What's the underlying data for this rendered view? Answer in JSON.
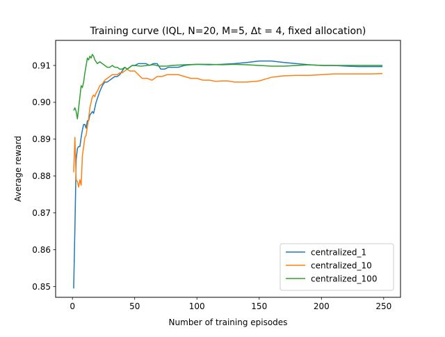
{
  "chart_data": {
    "type": "line",
    "title": "Training curve (IQL, N=20, M=5, Δt = 4, fixed allocation)",
    "xlabel": "Number of training episodes",
    "ylabel": "Average reward",
    "xlim": [
      -13.5,
      263.5
    ],
    "ylim": [
      0.8471,
      0.9168
    ],
    "xticks": [
      0,
      50,
      100,
      150,
      200,
      250
    ],
    "yticks": [
      0.85,
      0.86,
      0.87,
      0.88,
      0.89,
      0.9,
      0.91
    ],
    "ytick_labels": [
      "0.85",
      "0.86",
      "0.87",
      "0.88",
      "0.89",
      "0.90",
      "0.91"
    ],
    "grid": false,
    "legend_position": "lower right",
    "series": [
      {
        "name": "centralized_1",
        "color": "#1f77b4",
        "x": [
          1,
          2,
          3,
          4,
          5,
          6,
          7,
          8,
          9,
          10,
          11,
          12,
          13,
          14,
          15,
          16,
          17,
          18,
          19,
          20,
          22,
          24,
          26,
          28,
          30,
          32,
          34,
          36,
          38,
          40,
          42,
          44,
          46,
          48,
          50,
          53,
          56,
          59,
          62,
          65,
          68,
          71,
          74,
          77,
          80,
          85,
          90,
          95,
          100,
          110,
          120,
          130,
          140,
          150,
          155,
          160,
          165,
          170,
          180,
          190,
          200,
          210,
          220,
          230,
          240,
          249
        ],
        "y": [
          0.8495,
          0.866,
          0.8845,
          0.8875,
          0.888,
          0.888,
          0.8905,
          0.8925,
          0.894,
          0.894,
          0.893,
          0.895,
          0.895,
          0.8965,
          0.897,
          0.8975,
          0.897,
          0.8985,
          0.9,
          0.901,
          0.903,
          0.9045,
          0.9055,
          0.9055,
          0.906,
          0.9065,
          0.907,
          0.907,
          0.9075,
          0.9085,
          0.9095,
          0.909,
          0.9095,
          0.91,
          0.91,
          0.9105,
          0.9105,
          0.9105,
          0.91,
          0.9105,
          0.9105,
          0.909,
          0.909,
          0.9095,
          0.9095,
          0.9095,
          0.91,
          0.9102,
          0.9103,
          0.9102,
          0.9103,
          0.9105,
          0.9108,
          0.9112,
          0.9112,
          0.9112,
          0.911,
          0.9108,
          0.9105,
          0.9102,
          0.91,
          0.91,
          0.9098,
          0.9097,
          0.9097,
          0.9097
        ]
      },
      {
        "name": "centralized_10",
        "color": "#ff7f0e",
        "x": [
          1,
          2,
          3,
          4,
          5,
          6,
          7,
          8,
          9,
          10,
          11,
          12,
          13,
          14,
          15,
          16,
          17,
          18,
          19,
          20,
          22,
          24,
          26,
          28,
          30,
          32,
          34,
          36,
          38,
          40,
          42,
          44,
          46,
          48,
          50,
          53,
          56,
          60,
          64,
          68,
          72,
          76,
          80,
          85,
          90,
          95,
          100,
          105,
          110,
          115,
          120,
          125,
          130,
          140,
          150,
          155,
          160,
          165,
          170,
          180,
          190,
          200,
          210,
          220,
          230,
          240,
          249
        ],
        "y": [
          0.881,
          0.8905,
          0.879,
          0.8785,
          0.877,
          0.879,
          0.8775,
          0.8855,
          0.888,
          0.8905,
          0.891,
          0.8935,
          0.8955,
          0.8985,
          0.9,
          0.9015,
          0.902,
          0.9015,
          0.9025,
          0.903,
          0.9045,
          0.905,
          0.906,
          0.9065,
          0.907,
          0.9075,
          0.9075,
          0.9075,
          0.908,
          0.908,
          0.9085,
          0.909,
          0.9085,
          0.9085,
          0.9085,
          0.9075,
          0.9065,
          0.9065,
          0.906,
          0.907,
          0.907,
          0.9075,
          0.9075,
          0.9075,
          0.907,
          0.9065,
          0.9065,
          0.906,
          0.906,
          0.9057,
          0.9058,
          0.9058,
          0.9055,
          0.9055,
          0.9058,
          0.9063,
          0.9068,
          0.907,
          0.9072,
          0.9073,
          0.9073,
          0.9075,
          0.9077,
          0.9077,
          0.9077,
          0.9077,
          0.9078
        ]
      },
      {
        "name": "centralized_100",
        "color": "#2ca02c",
        "x": [
          1,
          2,
          3,
          4,
          5,
          6,
          7,
          8,
          9,
          10,
          11,
          12,
          13,
          14,
          15,
          16,
          17,
          18,
          19,
          20,
          22,
          24,
          26,
          28,
          30,
          32,
          34,
          36,
          38,
          40,
          42,
          44,
          46,
          48,
          50,
          55,
          60,
          65,
          70,
          75,
          80,
          90,
          100,
          110,
          120,
          130,
          140,
          150,
          160,
          170,
          180,
          190,
          200,
          210,
          220,
          230,
          240,
          249
        ],
        "y": [
          0.8978,
          0.8985,
          0.8975,
          0.8955,
          0.8985,
          0.9015,
          0.9045,
          0.904,
          0.9055,
          0.908,
          0.91,
          0.912,
          0.9115,
          0.9125,
          0.912,
          0.913,
          0.9125,
          0.9115,
          0.911,
          0.9105,
          0.911,
          0.9105,
          0.91,
          0.9095,
          0.9095,
          0.91,
          0.9095,
          0.9095,
          0.909,
          0.909,
          0.9095,
          0.909,
          0.9095,
          0.91,
          0.91,
          0.9098,
          0.91,
          0.9102,
          0.9098,
          0.9098,
          0.91,
          0.9102,
          0.9103,
          0.9103,
          0.9102,
          0.9103,
          0.9102,
          0.91,
          0.9098,
          0.9098,
          0.91,
          0.9102,
          0.91,
          0.91,
          0.91,
          0.91,
          0.91,
          0.91
        ]
      }
    ]
  }
}
